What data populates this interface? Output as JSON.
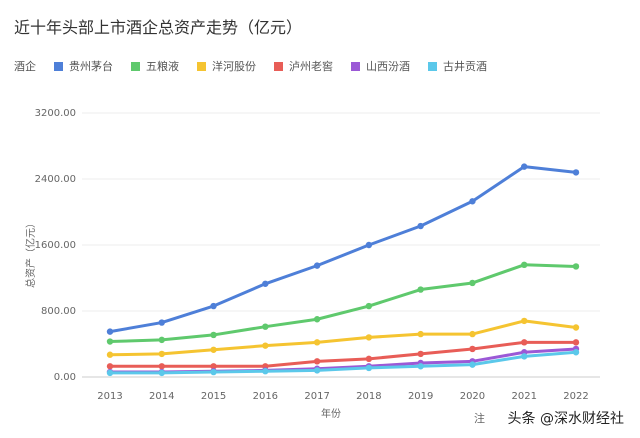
{
  "chart_data": {
    "type": "line",
    "title": "近十年头部上市酒企总资产走势（亿元）",
    "legend_title": "酒企",
    "xlabel": "年份",
    "ylabel": "总资产（亿元）",
    "ylim": [
      0,
      3200
    ],
    "y_ticks": [
      "0.00",
      "800.00",
      "1600.00",
      "2400.00",
      "3200.00"
    ],
    "y_tick_values": [
      0,
      800,
      1600,
      2400,
      3200
    ],
    "categories": [
      "2013",
      "2014",
      "2015",
      "2016",
      "2017",
      "2018",
      "2019",
      "2020",
      "2021",
      "2022"
    ],
    "series": [
      {
        "name": "贵州茅台",
        "color": "#4e7fd8",
        "values": [
          550,
          660,
          860,
          1130,
          1350,
          1600,
          1830,
          2130,
          2550,
          2480
        ]
      },
      {
        "name": "五粮液",
        "color": "#5fc96d",
        "values": [
          430,
          450,
          510,
          610,
          700,
          860,
          1060,
          1140,
          1360,
          1340
        ]
      },
      {
        "name": "洋河股份",
        "color": "#f5c431",
        "values": [
          270,
          280,
          330,
          380,
          420,
          480,
          520,
          520,
          680,
          600
        ]
      },
      {
        "name": "泸州老窖",
        "color": "#e85d57",
        "values": [
          130,
          130,
          130,
          130,
          190,
          220,
          280,
          340,
          420,
          420
        ]
      },
      {
        "name": "山西汾酒",
        "color": "#9b59d6",
        "values": [
          60,
          60,
          70,
          80,
          100,
          130,
          170,
          190,
          300,
          340
        ]
      },
      {
        "name": "古井贡酒",
        "color": "#5bc8ea",
        "values": [
          50,
          50,
          60,
          70,
          80,
          110,
          130,
          150,
          250,
          300
        ]
      }
    ]
  },
  "footer": {
    "note_label": "注",
    "watermark": "头条 @深水财经社"
  }
}
